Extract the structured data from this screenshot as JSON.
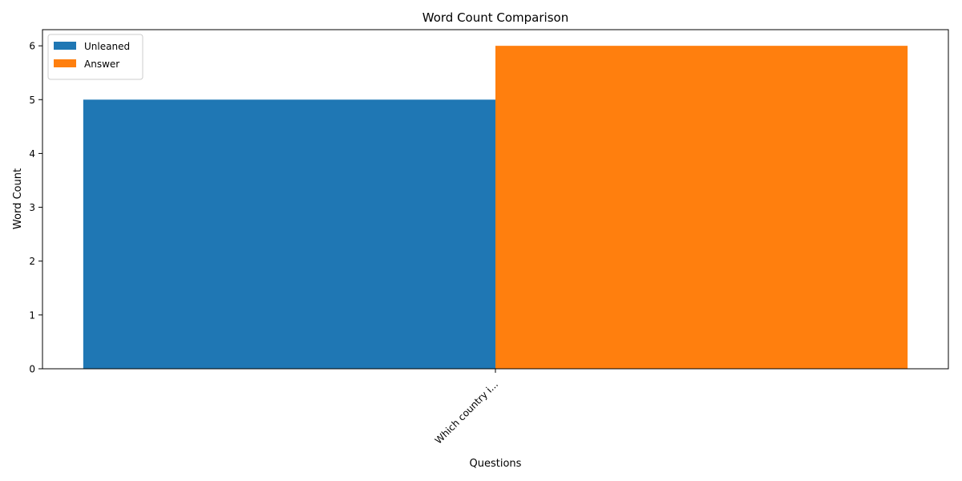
{
  "chart_data": {
    "type": "bar",
    "title": "Word Count Comparison",
    "xlabel": "Questions",
    "ylabel": "Word Count",
    "categories": [
      "Which country i..."
    ],
    "series": [
      {
        "name": "Unleaned",
        "values": [
          5
        ],
        "color": "#1f77b4"
      },
      {
        "name": "Answer",
        "values": [
          6
        ],
        "color": "#ff7f0e"
      }
    ],
    "ylim": [
      0,
      6.3
    ],
    "yticks": [
      0,
      1,
      2,
      3,
      4,
      5,
      6
    ],
    "legend_position": "top-left",
    "grid": false
  }
}
